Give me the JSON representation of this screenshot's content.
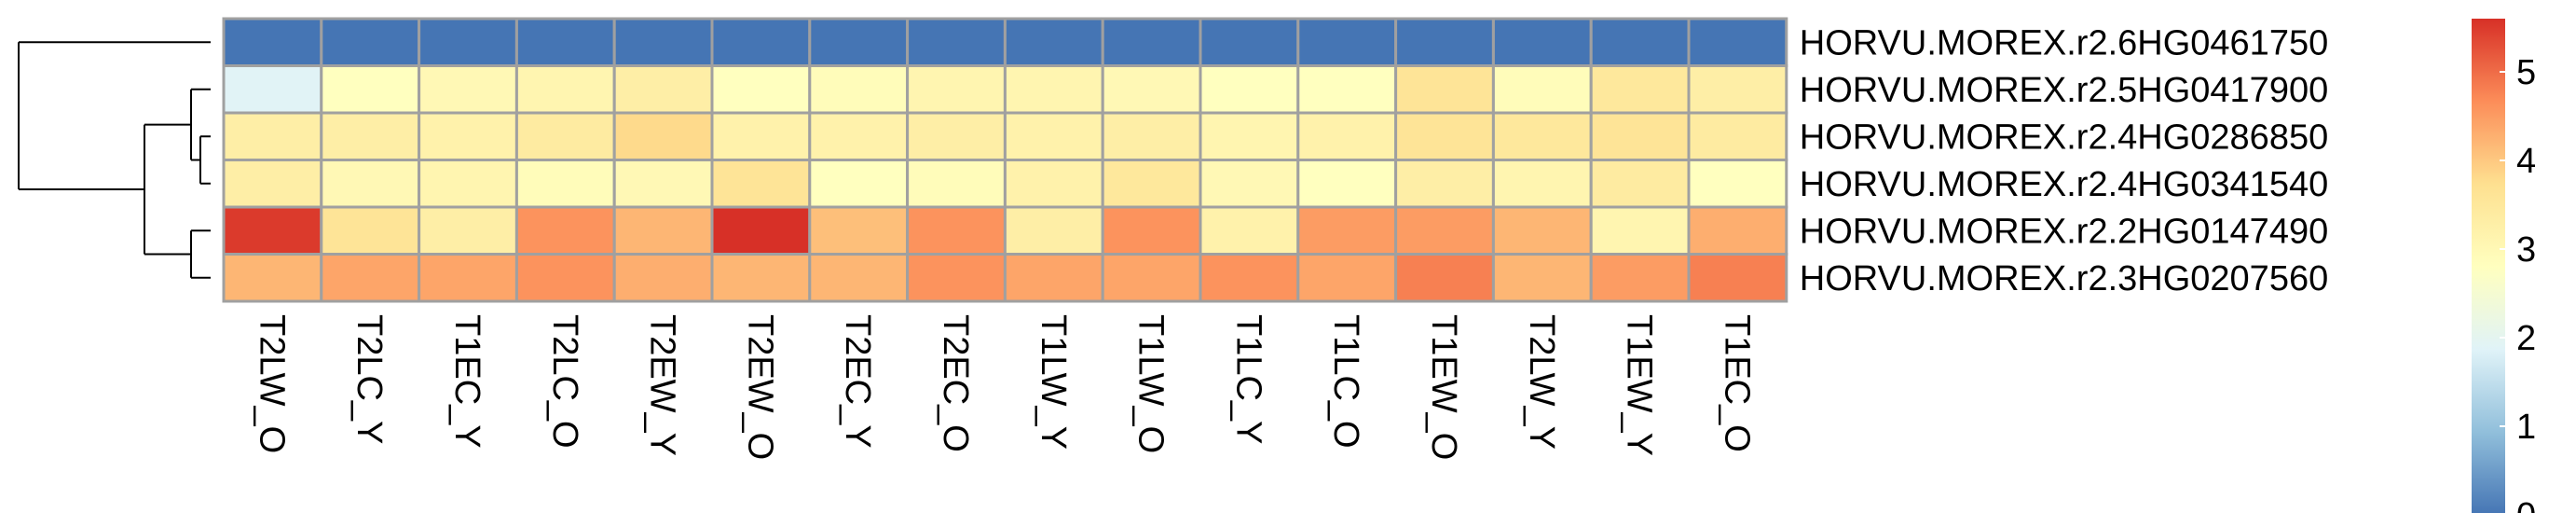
{
  "chart_data": {
    "type": "heatmap",
    "columns": [
      "T2LW_O",
      "T2LC_Y",
      "T1EC_Y",
      "T2LC_O",
      "T2EW_Y",
      "T2EW_O",
      "T2EC_Y",
      "T2EC_O",
      "T1LW_Y",
      "T1LW_O",
      "T1LC_Y",
      "T1LC_O",
      "T1EW_O",
      "T2LW_Y",
      "T1EW_Y",
      "T1EC_O"
    ],
    "rows": [
      {
        "label": "HORVU.MOREX.r2.6HG0461750",
        "values": [
          0.0,
          0.0,
          0.0,
          0.0,
          0.0,
          0.0,
          0.0,
          0.0,
          0.0,
          0.0,
          0.0,
          0.0,
          0.0,
          0.0,
          0.0,
          0.0
        ]
      },
      {
        "label": "HORVU.MOREX.r2.5HG0417900",
        "values": [
          1.9,
          2.8,
          3.0,
          3.1,
          3.3,
          2.8,
          2.9,
          3.1,
          3.1,
          3.0,
          2.8,
          2.8,
          3.6,
          2.9,
          3.5,
          3.3
        ]
      },
      {
        "label": "HORVU.MOREX.r2.4HG0286850",
        "values": [
          3.3,
          3.3,
          3.2,
          3.4,
          3.8,
          3.2,
          3.2,
          3.3,
          3.2,
          3.3,
          3.1,
          3.2,
          3.6,
          3.5,
          3.6,
          3.4
        ]
      },
      {
        "label": "HORVU.MOREX.r2.4HG0341540",
        "values": [
          3.3,
          3.0,
          3.1,
          2.9,
          3.0,
          3.6,
          2.8,
          2.9,
          3.2,
          3.5,
          3.0,
          2.8,
          3.3,
          3.1,
          3.4,
          2.8
        ]
      },
      {
        "label": "HORVU.MOREX.r2.2HG0147490",
        "values": [
          5.5,
          3.6,
          3.3,
          4.6,
          4.2,
          5.6,
          4.1,
          4.6,
          3.3,
          4.6,
          3.2,
          4.5,
          4.5,
          4.2,
          3.1,
          4.3
        ]
      },
      {
        "label": "HORVU.MOREX.r2.3HG0207560",
        "values": [
          4.2,
          4.4,
          4.4,
          4.6,
          4.3,
          4.2,
          4.2,
          4.6,
          4.4,
          4.4,
          4.6,
          4.4,
          4.8,
          4.2,
          4.5,
          4.8
        ]
      }
    ],
    "color_scale": {
      "min": 0,
      "max": 5.6,
      "ticks": [
        0,
        1,
        2,
        3,
        4,
        5
      ],
      "stops": [
        "#4575B4",
        "#91BFDB",
        "#E0F3F8",
        "#FFFFBF",
        "#FEE090",
        "#FC8D59",
        "#D73027"
      ]
    },
    "legend_position": "right",
    "row_dendrogram": true,
    "column_dendrogram": false,
    "cell_border_color": "#A0A0A0"
  }
}
